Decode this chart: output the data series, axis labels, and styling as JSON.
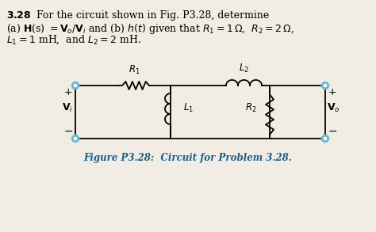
{
  "figure_caption": "Figure P3.28:  Circuit for Problem 3.28.",
  "node_color": "#6ab8d4",
  "wire_color": "#000000",
  "component_color": "#000000",
  "background_color": "#f2ede4",
  "caption_color": "#1a5f8a",
  "text_color": "#000000"
}
